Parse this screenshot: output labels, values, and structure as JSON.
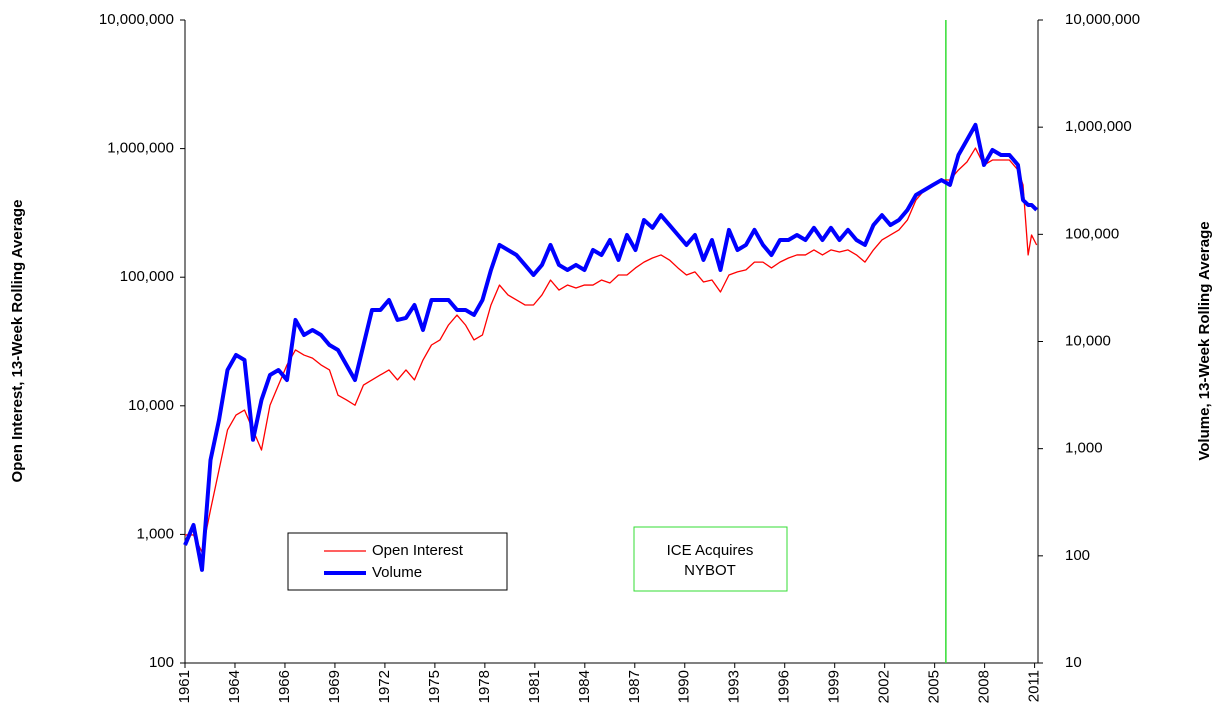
{
  "chart_data": {
    "type": "line",
    "log_y": true,
    "y_label": "Open Interest, 13-Week Rolling Average",
    "y2_label": "Volume, 13-Week Rolling Average",
    "xlim": [
      1961,
      2011.18
    ],
    "xticks": [
      {
        "value": 1961,
        "label": "1961"
      },
      {
        "value": 1963.94,
        "label": "1964"
      },
      {
        "value": 1966.88,
        "label": "1966"
      },
      {
        "value": 1969.82,
        "label": "1969"
      },
      {
        "value": 1972.76,
        "label": "1972"
      },
      {
        "value": 1975.7,
        "label": "1975"
      },
      {
        "value": 1978.64,
        "label": "1978"
      },
      {
        "value": 1981.58,
        "label": "1981"
      },
      {
        "value": 1984.52,
        "label": "1984"
      },
      {
        "value": 1987.46,
        "label": "1987"
      },
      {
        "value": 1990.4,
        "label": "1990"
      },
      {
        "value": 1993.34,
        "label": "1993"
      },
      {
        "value": 1996.28,
        "label": "1996"
      },
      {
        "value": 1999.22,
        "label": "1999"
      },
      {
        "value": 2002.16,
        "label": "2002"
      },
      {
        "value": 2005.1,
        "label": "2005"
      },
      {
        "value": 2008.04,
        "label": "2008"
      },
      {
        "value": 2010.98,
        "label": "2011"
      }
    ],
    "ylim": [
      100,
      10000000
    ],
    "yticks": [
      100,
      {
        "value": 1000,
        "label": "1,000"
      },
      {
        "value": 10000,
        "label": "10,000"
      },
      {
        "value": 100000,
        "label": "100,000"
      },
      {
        "value": 1000000,
        "label": "1,000,000"
      },
      {
        "value": 10000000,
        "label": "10,000,000"
      }
    ],
    "y2lim": [
      10,
      10000000
    ],
    "y2ticks": [
      10,
      100,
      {
        "value": 1000,
        "label": "1,000"
      },
      {
        "value": 10000,
        "label": "10,000"
      },
      {
        "value": 100000,
        "label": "100,000"
      },
      {
        "value": 1000000,
        "label": "1,000,000"
      },
      {
        "value": 10000000,
        "label": "10,000,000"
      }
    ],
    "x": [
      1961.0,
      1961.5,
      1962.0,
      1962.5,
      1963.0,
      1963.5,
      1964.0,
      1964.5,
      1965.0,
      1965.5,
      1966.0,
      1966.5,
      1967.0,
      1967.5,
      1968.0,
      1968.5,
      1969.0,
      1969.5,
      1970.0,
      1970.5,
      1971.0,
      1971.5,
      1972.0,
      1972.5,
      1973.0,
      1973.5,
      1974.0,
      1974.5,
      1975.0,
      1975.5,
      1976.0,
      1976.5,
      1977.0,
      1977.5,
      1978.0,
      1978.5,
      1979.0,
      1979.5,
      1980.0,
      1980.5,
      1981.0,
      1981.5,
      1982.0,
      1982.5,
      1983.0,
      1983.5,
      1984.0,
      1984.5,
      1985.0,
      1985.5,
      1986.0,
      1986.5,
      1987.0,
      1987.5,
      1988.0,
      1988.5,
      1989.0,
      1989.5,
      1990.0,
      1990.5,
      1991.0,
      1991.5,
      1992.0,
      1992.5,
      1993.0,
      1993.5,
      1994.0,
      1994.5,
      1995.0,
      1995.5,
      1996.0,
      1996.5,
      1997.0,
      1997.5,
      1998.0,
      1998.5,
      1999.0,
      1999.5,
      2000.0,
      2000.5,
      2001.0,
      2001.5,
      2002.0,
      2002.5,
      2003.0,
      2003.5,
      2004.0,
      2004.5,
      2005.0,
      2005.5,
      2006.0,
      2006.5,
      2007.0,
      2007.5,
      2008.0,
      2008.5,
      2009.0,
      2009.5,
      2010.0,
      2010.3,
      2010.6,
      2010.8,
      2011.1
    ],
    "series": [
      {
        "name": "Open Interest",
        "color": "#ff0000",
        "width": 1.3,
        "values": [
          990,
          990,
          730,
          1550,
          3170,
          6490,
          8480,
          9270,
          6490,
          4530,
          10100,
          14500,
          20800,
          27200,
          24800,
          23500,
          20800,
          19000,
          12100,
          11100,
          10100,
          14500,
          15900,
          17400,
          19000,
          15900,
          19000,
          15900,
          22700,
          29700,
          32500,
          42500,
          50800,
          42500,
          32500,
          35600,
          60800,
          86900,
          72800,
          66500,
          60800,
          60800,
          72800,
          95100,
          79400,
          86900,
          82400,
          86900,
          86900,
          95100,
          90200,
          104000,
          104000,
          118000,
          131000,
          141000,
          149000,
          136000,
          118000,
          104000,
          110000,
          91800,
          95100,
          76700,
          104000,
          110000,
          114000,
          131000,
          131000,
          118000,
          131000,
          141000,
          149000,
          149000,
          163000,
          149000,
          163000,
          157000,
          163000,
          149000,
          131000,
          163000,
          195000,
          213000,
          233000,
          279000,
          398000,
          476000,
          521000,
          570000,
          570000,
          682000,
          787000,
          1010000,
          745000,
          815000,
          815000,
          815000,
          682000,
          521000,
          149000,
          213000,
          178000
        ]
      },
      {
        "name": "Volume",
        "color": "#0000ff",
        "width": 4,
        "axis": "y2",
        "values": [
          126,
          194,
          74,
          783,
          1850,
          5420,
          7480,
          6720,
          1210,
          2850,
          4870,
          5420,
          4370,
          15900,
          11500,
          12800,
          11500,
          9270,
          8330,
          6040,
          4370,
          9270,
          19700,
          19700,
          24400,
          15900,
          16600,
          21900,
          12800,
          24400,
          24400,
          24400,
          19700,
          19700,
          17700,
          24400,
          46500,
          79600,
          71400,
          64100,
          51800,
          41800,
          51800,
          79600,
          51800,
          46500,
          51800,
          46500,
          71400,
          64100,
          88500,
          57700,
          98600,
          71400,
          136000,
          115000,
          151000,
          122000,
          98600,
          79600,
          98600,
          57700,
          88500,
          46500,
          110000,
          71400,
          79600,
          110000,
          79600,
          64100,
          88500,
          88500,
          98600,
          88500,
          115000,
          88500,
          115000,
          88500,
          110000,
          88500,
          79600,
          122000,
          151000,
          122000,
          136000,
          169000,
          233000,
          259000,
          289000,
          321000,
          289000,
          550000,
          759000,
          1050000,
          444000,
          612000,
          550000,
          550000,
          444000,
          209000,
          188000,
          188000,
          169000
        ]
      }
    ],
    "annotation": {
      "lines": [
        "ICE Acquires",
        "NYBOT"
      ],
      "x": 2005.76,
      "color": "#33dd33"
    }
  }
}
